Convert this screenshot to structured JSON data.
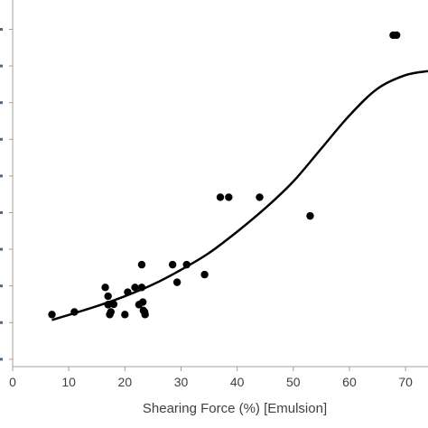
{
  "chart_data": {
    "type": "scatter",
    "title": "",
    "xlabel": "Shearing Force (%) [Emulsion]",
    "ylabel": "",
    "xlim": [
      0,
      74
    ],
    "ylim": [
      0,
      1
    ],
    "grid": false,
    "x_ticks": [
      "0",
      "10",
      "20",
      "30",
      "40",
      "50",
      "60",
      "70"
    ],
    "x_tick_values": [
      0,
      10,
      20,
      30,
      40,
      50,
      60,
      70
    ],
    "y_tick_values": [
      0.02,
      0.12,
      0.22,
      0.32,
      0.42,
      0.52,
      0.62,
      0.72,
      0.82,
      0.92,
      1.02
    ],
    "point_color": "#000000",
    "line_color": "#000000",
    "series": [
      {
        "type": "scatter",
        "x": [
          7,
          11,
          16.5,
          17,
          17,
          17.3,
          17.5,
          18,
          20,
          20.5,
          21.8,
          22.5,
          23,
          23,
          23.2,
          23.3,
          23.5,
          23.6,
          28.5,
          29.3,
          31,
          34.2,
          37,
          38.5,
          44,
          53,
          67.8,
          68.4
        ],
        "y": [
          0.142,
          0.149,
          0.216,
          0.169,
          0.192,
          0.142,
          0.149,
          0.17,
          0.142,
          0.203,
          0.216,
          0.169,
          0.278,
          0.216,
          0.176,
          0.153,
          0.149,
          0.142,
          0.278,
          0.23,
          0.278,
          0.251,
          0.462,
          0.462,
          0.462,
          0.411,
          0.904,
          0.904
        ]
      },
      {
        "type": "line",
        "x": [
          7,
          15,
          20,
          25,
          30,
          35,
          40,
          45,
          50,
          55,
          60,
          65,
          70,
          74
        ],
        "y": [
          0.127,
          0.165,
          0.192,
          0.224,
          0.264,
          0.31,
          0.368,
          0.432,
          0.505,
          0.595,
          0.685,
          0.758,
          0.795,
          0.806
        ]
      }
    ]
  }
}
